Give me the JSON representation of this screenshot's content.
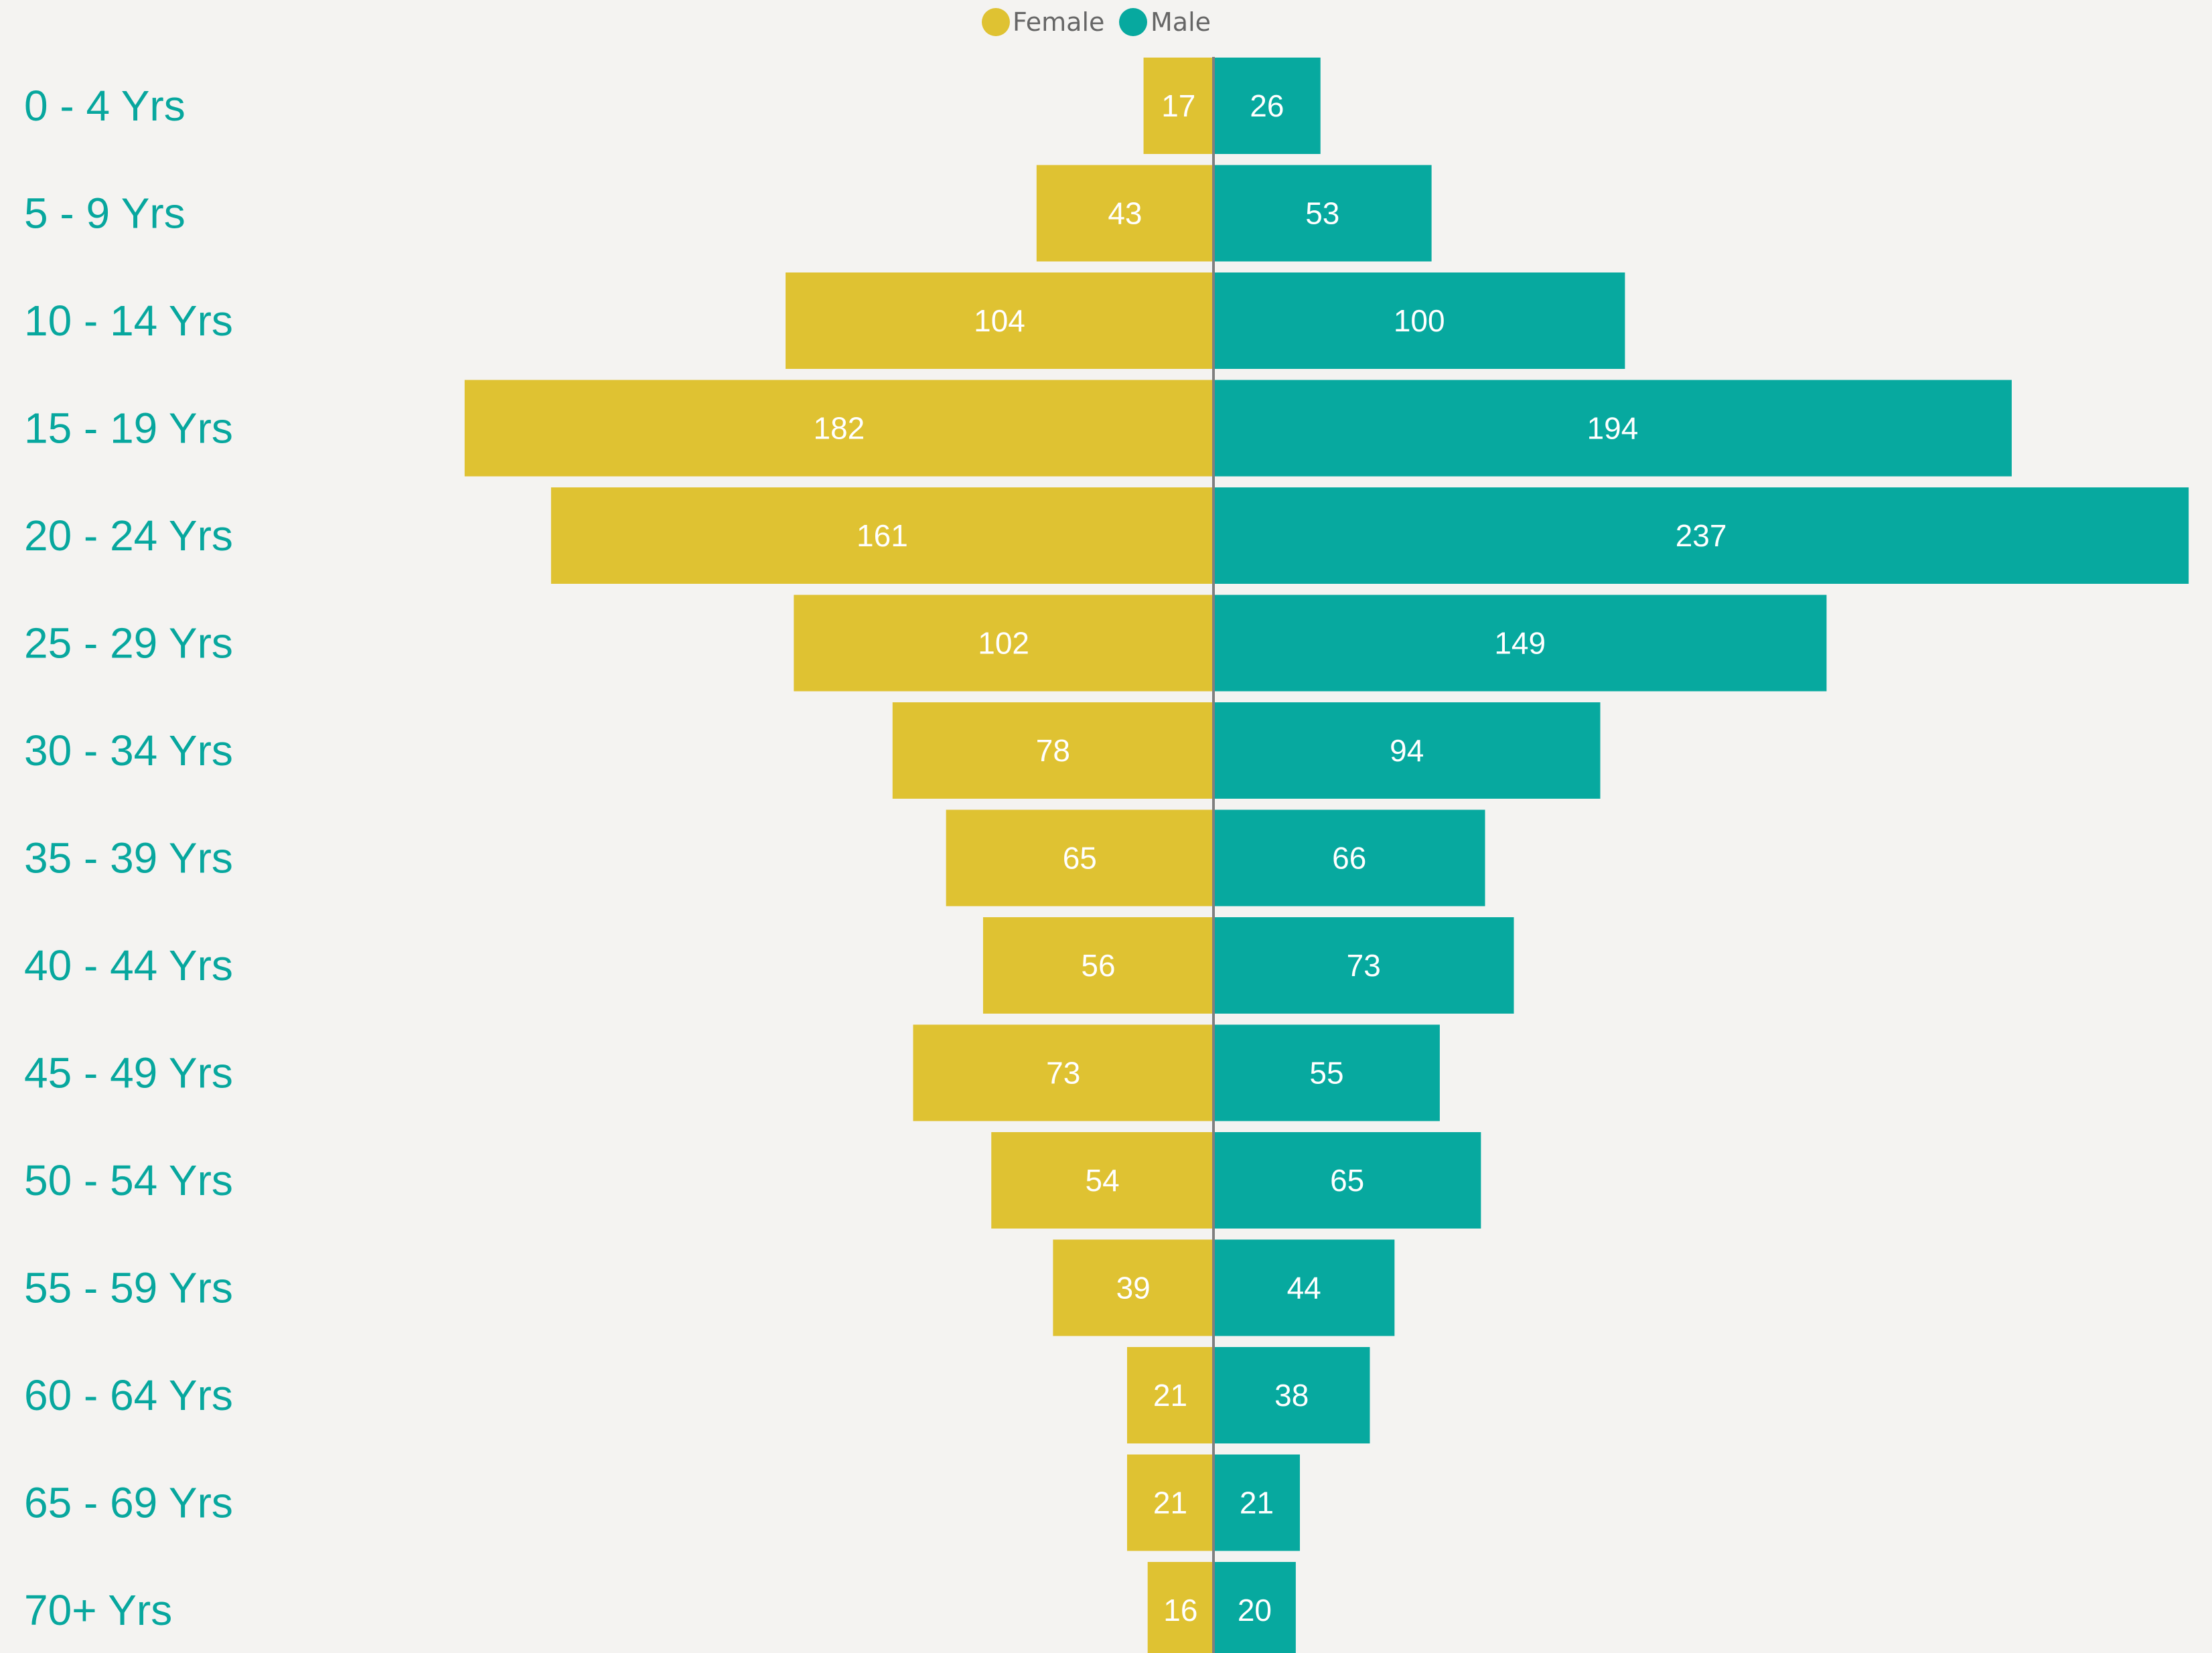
{
  "chart_data": {
    "type": "bar",
    "orientation": "horizontal",
    "subtype": "population-pyramid",
    "categories": [
      "0 - 4 Yrs",
      "5 - 9 Yrs",
      "10 - 14 Yrs",
      "15 - 19 Yrs",
      "20 - 24 Yrs",
      "25 - 29 Yrs",
      "30 - 34 Yrs",
      "35 - 39 Yrs",
      "40 - 44 Yrs",
      "45 - 49 Yrs",
      "50 - 54 Yrs",
      "55 - 59 Yrs",
      "60 - 64 Yrs",
      "65 - 69 Yrs",
      "70+ Yrs"
    ],
    "series": [
      {
        "name": "Female",
        "color": "#dfc232",
        "direction": "left",
        "values": [
          17,
          43,
          104,
          182,
          161,
          102,
          78,
          65,
          56,
          73,
          54,
          39,
          21,
          21,
          16
        ]
      },
      {
        "name": "Male",
        "color": "#07a99f",
        "direction": "right",
        "values": [
          26,
          53,
          100,
          194,
          237,
          149,
          94,
          66,
          73,
          55,
          65,
          44,
          38,
          21,
          20
        ]
      }
    ],
    "title": "",
    "xlabel": "",
    "ylabel": "",
    "legend_position": "top-center",
    "grid": false,
    "data_labels": true,
    "category_label_color": "#07a79e",
    "center_line_color": "#7f7f7f"
  }
}
